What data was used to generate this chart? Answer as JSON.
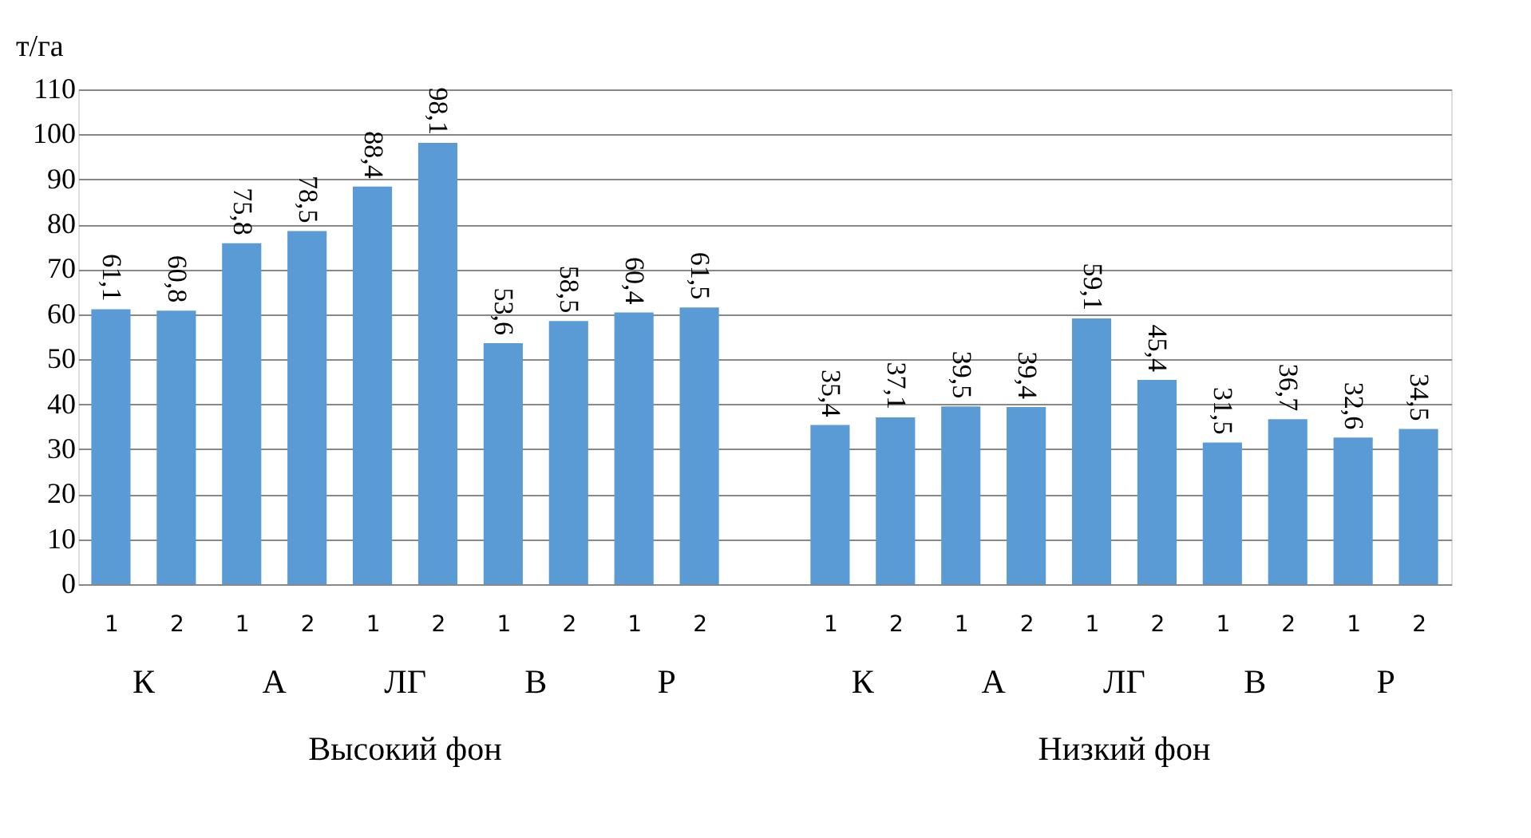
{
  "chart_data": {
    "type": "bar",
    "ylabel": "т/га",
    "categories": [
      "1",
      "2",
      "1",
      "2",
      "1",
      "2",
      "1",
      "2",
      "1",
      "2",
      null,
      "1",
      "2",
      "1",
      "2",
      "1",
      "2",
      "1",
      "2",
      "1",
      "2"
    ],
    "values": [
      61.1,
      60.8,
      75.8,
      78.5,
      88.4,
      98.1,
      53.6,
      58.5,
      60.4,
      61.5,
      null,
      35.4,
      37.1,
      39.5,
      39.4,
      59.1,
      45.4,
      31.5,
      36.7,
      32.6,
      34.5
    ],
    "value_labels": [
      "61,1",
      "60,8",
      "75,8",
      "78,5",
      "88,4",
      "98,1",
      "53,6",
      "58,5",
      "60,4",
      "61,5",
      null,
      "35,4",
      "37,1",
      "39,5",
      "39,4",
      "59,1",
      "45,4",
      "31,5",
      "36,7",
      "32,6",
      "34,5"
    ],
    "color": "#5b9bd5",
    "ylim": [
      0,
      110
    ],
    "yticks": [
      0,
      10,
      20,
      30,
      40,
      50,
      60,
      70,
      80,
      90,
      100,
      110
    ],
    "grid": "y",
    "annotations": [
      "К",
      "А",
      "ЛГ",
      "В",
      "Р",
      "К",
      "А",
      "ЛГ",
      "В",
      "Р",
      "Высокий фон",
      "Низкий фон"
    ]
  }
}
